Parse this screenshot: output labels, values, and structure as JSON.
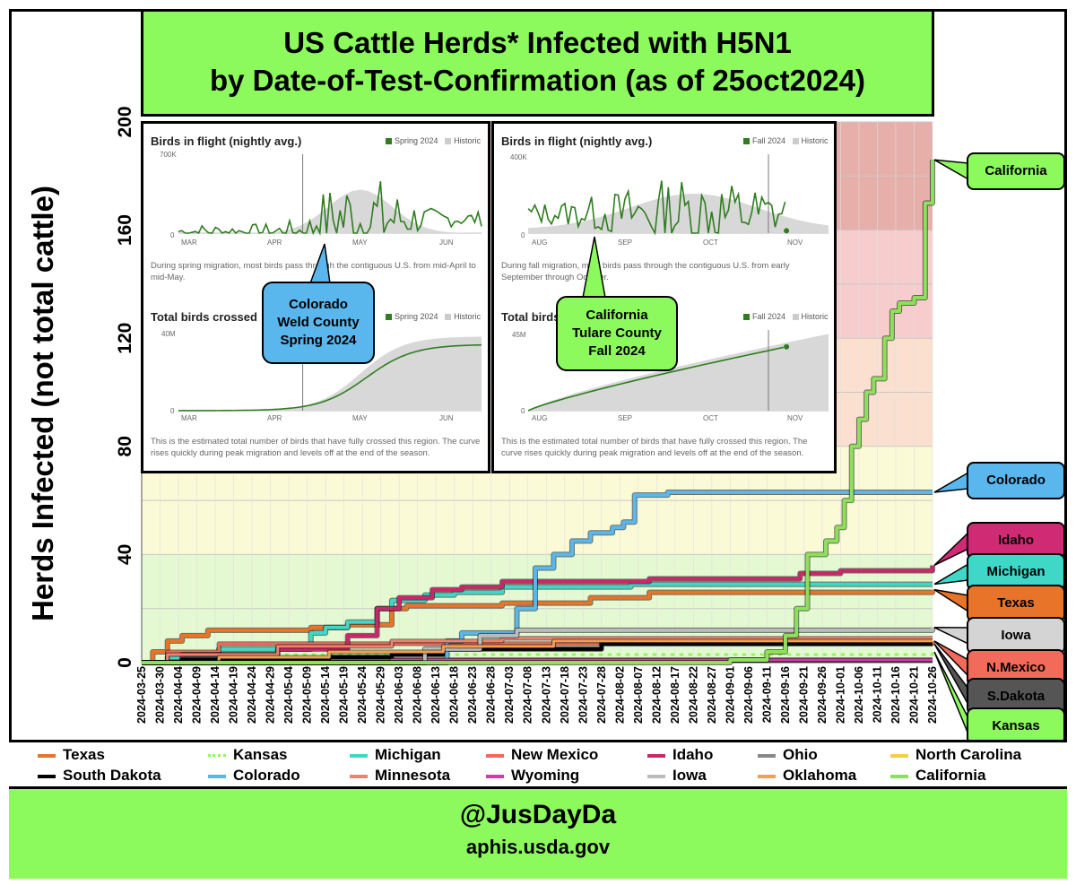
{
  "title": {
    "line1": "US Cattle Herds* Infected with H5N1",
    "line2": "by Date-of-Test-Confirmation (as of 25oct2024)"
  },
  "footer": {
    "handle": "@JusDayDa",
    "source": "aphis.usda.gov"
  },
  "colors": {
    "title_bg": "#8cfa5c",
    "band_green": "#e4f8d2",
    "band_yellow": "#fbfad6",
    "band_orange": "#fbe0d0",
    "band_pink": "#f7cccc",
    "band_red": "#e6afaa"
  },
  "chart_data": {
    "type": "line",
    "title": "US Cattle Herds* Infected with H5N1 by Date-of-Test-Confirmation (as of 25oct2024)",
    "ylabel": "Herds Infected (not total cattle)",
    "xlabel": "",
    "ylim": [
      0,
      200
    ],
    "yticks": [
      "0",
      "40",
      "80",
      "120",
      "160",
      "200"
    ],
    "xlim": [
      "2024-03-25",
      "2024-10-26"
    ],
    "xticks": [
      "2024-03-25",
      "2024-03-30",
      "2024-04-04",
      "2024-04-09",
      "2024-04-14",
      "2024-04-19",
      "2024-04-24",
      "2024-04-29",
      "2024-05-04",
      "2024-05-09",
      "2024-05-14",
      "2024-05-19",
      "2024-05-24",
      "2024-05-29",
      "2024-06-03",
      "2024-06-08",
      "2024-06-13",
      "2024-06-18",
      "2024-06-23",
      "2024-06-28",
      "2024-07-03",
      "2024-07-08",
      "2024-07-13",
      "2024-07-18",
      "2024-07-23",
      "2024-07-28",
      "2024-08-02",
      "2024-08-07",
      "2024-08-12",
      "2024-08-17",
      "2024-08-22",
      "2024-08-27",
      "2024-09-01",
      "2024-09-06",
      "2024-09-11",
      "2024-09-16",
      "2024-09-21",
      "2024-09-26",
      "2024-10-01",
      "2024-10-06",
      "2024-10-11",
      "2024-10-16",
      "2024-10-21",
      "2024-10-26"
    ],
    "grid": true,
    "legend_position": "bottom",
    "series": [
      {
        "name": "Texas",
        "color": "#e8742a",
        "width": 4,
        "dotted": false,
        "points": [
          [
            "2024-03-25",
            0
          ],
          [
            "2024-03-28",
            4
          ],
          [
            "2024-04-01",
            8
          ],
          [
            "2024-04-05",
            10
          ],
          [
            "2024-04-12",
            12
          ],
          [
            "2024-05-10",
            13
          ],
          [
            "2024-05-20",
            14
          ],
          [
            "2024-06-01",
            20
          ],
          [
            "2024-06-05",
            21
          ],
          [
            "2024-07-01",
            22
          ],
          [
            "2024-07-25",
            24
          ],
          [
            "2024-08-10",
            26
          ],
          [
            "2024-10-26",
            27
          ]
        ]
      },
      {
        "name": "Kansas",
        "color": "#8cfa5c",
        "width": 3,
        "dotted": true,
        "points": [
          [
            "2024-03-25",
            0
          ],
          [
            "2024-04-10",
            3
          ],
          [
            "2024-10-26",
            4
          ]
        ]
      },
      {
        "name": "Michigan",
        "color": "#3fd8c8",
        "width": 4,
        "dotted": false,
        "points": [
          [
            "2024-03-25",
            0
          ],
          [
            "2024-04-01",
            2
          ],
          [
            "2024-04-15",
            5
          ],
          [
            "2024-05-10",
            11
          ],
          [
            "2024-05-14",
            13
          ],
          [
            "2024-05-20",
            15
          ],
          [
            "2024-05-28",
            20
          ],
          [
            "2024-06-01",
            23
          ],
          [
            "2024-06-10",
            25
          ],
          [
            "2024-06-18",
            26
          ],
          [
            "2024-07-01",
            28
          ],
          [
            "2024-08-05",
            29
          ],
          [
            "2024-10-26",
            29
          ]
        ]
      },
      {
        "name": "New Mexico",
        "color": "#f26a5a",
        "width": 3,
        "dotted": false,
        "points": [
          [
            "2024-03-25",
            0
          ],
          [
            "2024-04-01",
            4
          ],
          [
            "2024-04-15",
            7
          ],
          [
            "2024-10-26",
            8
          ]
        ]
      },
      {
        "name": "Idaho",
        "color": "#c8276a",
        "width": 4,
        "dotted": false,
        "points": [
          [
            "2024-03-25",
            0
          ],
          [
            "2024-04-05",
            3
          ],
          [
            "2024-05-01",
            5
          ],
          [
            "2024-05-20",
            10
          ],
          [
            "2024-05-28",
            20
          ],
          [
            "2024-06-03",
            24
          ],
          [
            "2024-06-12",
            27
          ],
          [
            "2024-06-20",
            28
          ],
          [
            "2024-07-01",
            30
          ],
          [
            "2024-08-10",
            31
          ],
          [
            "2024-09-20",
            33
          ],
          [
            "2024-10-01",
            34
          ],
          [
            "2024-10-26",
            36
          ]
        ]
      },
      {
        "name": "Ohio",
        "color": "#888888",
        "width": 3,
        "dotted": false,
        "points": [
          [
            "2024-03-25",
            0
          ],
          [
            "2024-04-05",
            1
          ],
          [
            "2024-10-26",
            1
          ]
        ]
      },
      {
        "name": "North Carolina",
        "color": "#f3cf45",
        "width": 3,
        "dotted": false,
        "points": [
          [
            "2024-03-25",
            0
          ],
          [
            "2024-04-05",
            1
          ],
          [
            "2024-10-26",
            1
          ]
        ]
      },
      {
        "name": "South Dakota",
        "color": "#000000",
        "width": 4,
        "dotted": false,
        "points": [
          [
            "2024-03-25",
            0
          ],
          [
            "2024-04-05",
            1
          ],
          [
            "2024-05-15",
            2
          ],
          [
            "2024-06-01",
            3
          ],
          [
            "2024-06-15",
            5
          ],
          [
            "2024-07-28",
            7
          ],
          [
            "2024-10-26",
            7
          ]
        ]
      },
      {
        "name": "Colorado",
        "color": "#5ab7ee",
        "width": 4,
        "dotted": false,
        "points": [
          [
            "2024-03-25",
            0
          ],
          [
            "2024-06-12",
            0
          ],
          [
            "2024-06-16",
            8
          ],
          [
            "2024-06-20",
            11
          ],
          [
            "2024-07-05",
            20
          ],
          [
            "2024-07-10",
            35
          ],
          [
            "2024-07-15",
            40
          ],
          [
            "2024-07-20",
            45
          ],
          [
            "2024-07-25",
            48
          ],
          [
            "2024-07-31",
            50
          ],
          [
            "2024-08-03",
            52
          ],
          [
            "2024-08-06",
            62
          ],
          [
            "2024-08-15",
            63
          ],
          [
            "2024-10-26",
            63
          ]
        ]
      },
      {
        "name": "Minnesota",
        "color": "#f08070",
        "width": 3,
        "dotted": false,
        "points": [
          [
            "2024-03-25",
            0
          ],
          [
            "2024-04-01",
            3
          ],
          [
            "2024-05-01",
            6
          ],
          [
            "2024-06-01",
            8
          ],
          [
            "2024-07-01",
            9
          ],
          [
            "2024-10-26",
            9
          ]
        ]
      },
      {
        "name": "Wyoming",
        "color": "#d63aa6",
        "width": 3,
        "dotted": false,
        "points": [
          [
            "2024-03-25",
            0
          ],
          [
            "2024-06-01",
            1
          ],
          [
            "2024-10-26",
            1
          ]
        ]
      },
      {
        "name": "Iowa",
        "color": "#bbbbbb",
        "width": 4,
        "dotted": false,
        "points": [
          [
            "2024-03-25",
            0
          ],
          [
            "2024-06-01",
            0
          ],
          [
            "2024-06-10",
            5
          ],
          [
            "2024-06-25",
            10
          ],
          [
            "2024-07-05",
            12
          ],
          [
            "2024-10-26",
            13
          ]
        ]
      },
      {
        "name": "Oklahoma",
        "color": "#f0a050",
        "width": 3,
        "dotted": false,
        "points": [
          [
            "2024-03-25",
            0
          ],
          [
            "2024-04-15",
            2
          ],
          [
            "2024-05-15",
            4
          ],
          [
            "2024-06-15",
            6
          ],
          [
            "2024-07-15",
            8
          ],
          [
            "2024-10-26",
            8
          ]
        ]
      },
      {
        "name": "California",
        "color": "#8ce05a",
        "width": 4,
        "dotted": false,
        "points": [
          [
            "2024-03-25",
            0
          ],
          [
            "2024-08-28",
            0
          ],
          [
            "2024-09-01",
            1
          ],
          [
            "2024-09-11",
            4
          ],
          [
            "2024-09-16",
            10
          ],
          [
            "2024-09-19",
            20
          ],
          [
            "2024-09-22",
            40
          ],
          [
            "2024-09-27",
            45
          ],
          [
            "2024-09-30",
            50
          ],
          [
            "2024-10-02",
            60
          ],
          [
            "2024-10-04",
            80
          ],
          [
            "2024-10-06",
            90
          ],
          [
            "2024-10-08",
            100
          ],
          [
            "2024-10-10",
            105
          ],
          [
            "2024-10-13",
            120
          ],
          [
            "2024-10-15",
            130
          ],
          [
            "2024-10-17",
            133
          ],
          [
            "2024-10-21",
            135
          ],
          [
            "2024-10-24",
            170
          ],
          [
            "2024-10-26",
            186
          ]
        ]
      }
    ],
    "bands": [
      {
        "from": 0,
        "to": 40,
        "color": "#e4f8d2"
      },
      {
        "from": 40,
        "to": 80,
        "color": "#fbfad6"
      },
      {
        "from": 80,
        "to": 120,
        "color": "#fbe0d0"
      },
      {
        "from": 120,
        "to": 160,
        "color": "#f7cccc"
      },
      {
        "from": 160,
        "to": 200,
        "color": "#e6afaa"
      }
    ]
  },
  "end_labels": [
    {
      "text": "California",
      "color": "#8cfa5c",
      "series": "California"
    },
    {
      "text": "Colorado",
      "color": "#5ab7ee",
      "series": "Colorado"
    },
    {
      "text": "Idaho",
      "color": "#d12a74",
      "series": "Idaho"
    },
    {
      "text": "Michigan",
      "color": "#3fd8c8",
      "series": "Michigan"
    },
    {
      "text": "Texas",
      "color": "#e8742a",
      "series": "Texas"
    },
    {
      "text": "Iowa",
      "color": "#d4d4d4",
      "series": "Iowa"
    },
    {
      "text": "N.Mexico",
      "color": "#f26a5a",
      "series": "New Mexico"
    },
    {
      "text": "S.Dakota",
      "color": "#555555",
      "series": "South Dakota"
    },
    {
      "text": "Kansas",
      "color": "#8cfa5c",
      "series": "Kansas"
    }
  ],
  "insets": {
    "spring": {
      "flight_title": "Birds in flight (nightly avg.)",
      "flight_legend_a": "Spring 2024",
      "flight_legend_b": "Historic",
      "flight_ymax": "700K",
      "flight_y0": "0",
      "flight_months": [
        "MAR",
        "APR",
        "MAY",
        "JUN"
      ],
      "flight_desc": "During spring migration, most birds pass through the contiguous U.S. from mid-April to mid-May.",
      "total_title": "Total birds crossed",
      "total_legend_a": "Spring 2024",
      "total_legend_b": "Historic",
      "total_ymax": "40M",
      "total_y0": "0",
      "total_months": [
        "MAR",
        "APR",
        "MAY",
        "JUN"
      ],
      "total_desc": "This is the estimated total number of birds that have fully crossed this region. The curve rises quickly during peak migration and levels off at the end of the season.",
      "callout": [
        "Colorado",
        "Weld County",
        "Spring 2024"
      ]
    },
    "fall": {
      "flight_title": "Birds in flight (nightly avg.)",
      "flight_legend_a": "Fall 2024",
      "flight_legend_b": "Historic",
      "flight_ymax": "400K",
      "flight_y0": "0",
      "flight_months": [
        "AUG",
        "SEP",
        "OCT",
        "NOV"
      ],
      "flight_desc": "During fall migration, most birds pass through the contiguous U.S. from early September through October.",
      "total_title": "Total birds",
      "total_legend_a": "Fall 2024",
      "total_legend_b": "Historic",
      "total_ymax": "45M",
      "total_y0": "0",
      "total_months": [
        "AUG",
        "SEP",
        "OCT",
        "NOV"
      ],
      "total_desc": "This is the estimated total number of birds that have fully crossed this region. The curve rises quickly during peak migration and levels off at the end of the season.",
      "callout": [
        "California",
        "Tulare County",
        "Fall 2024"
      ]
    }
  },
  "legend": [
    {
      "name": "Texas",
      "color": "#e8742a",
      "dotted": false
    },
    {
      "name": "Kansas",
      "color": "#8cfa5c",
      "dotted": true
    },
    {
      "name": "Michigan",
      "color": "#3fd8c8",
      "dotted": false
    },
    {
      "name": "New Mexico",
      "color": "#f26a5a",
      "dotted": false
    },
    {
      "name": "Idaho",
      "color": "#c8276a",
      "dotted": false
    },
    {
      "name": "Ohio",
      "color": "#888888",
      "dotted": false
    },
    {
      "name": "North Carolina",
      "color": "#f3cf45",
      "dotted": false
    },
    {
      "name": "South Dakota",
      "color": "#000000",
      "dotted": false
    },
    {
      "name": "Colorado",
      "color": "#5ab7ee",
      "dotted": false
    },
    {
      "name": "Minnesota",
      "color": "#f08070",
      "dotted": false
    },
    {
      "name": "Wyoming",
      "color": "#d63aa6",
      "dotted": false
    },
    {
      "name": "Iowa",
      "color": "#bbbbbb",
      "dotted": false
    },
    {
      "name": "Oklahoma",
      "color": "#f0a050",
      "dotted": false
    },
    {
      "name": "California",
      "color": "#8ce05a",
      "dotted": false
    }
  ]
}
